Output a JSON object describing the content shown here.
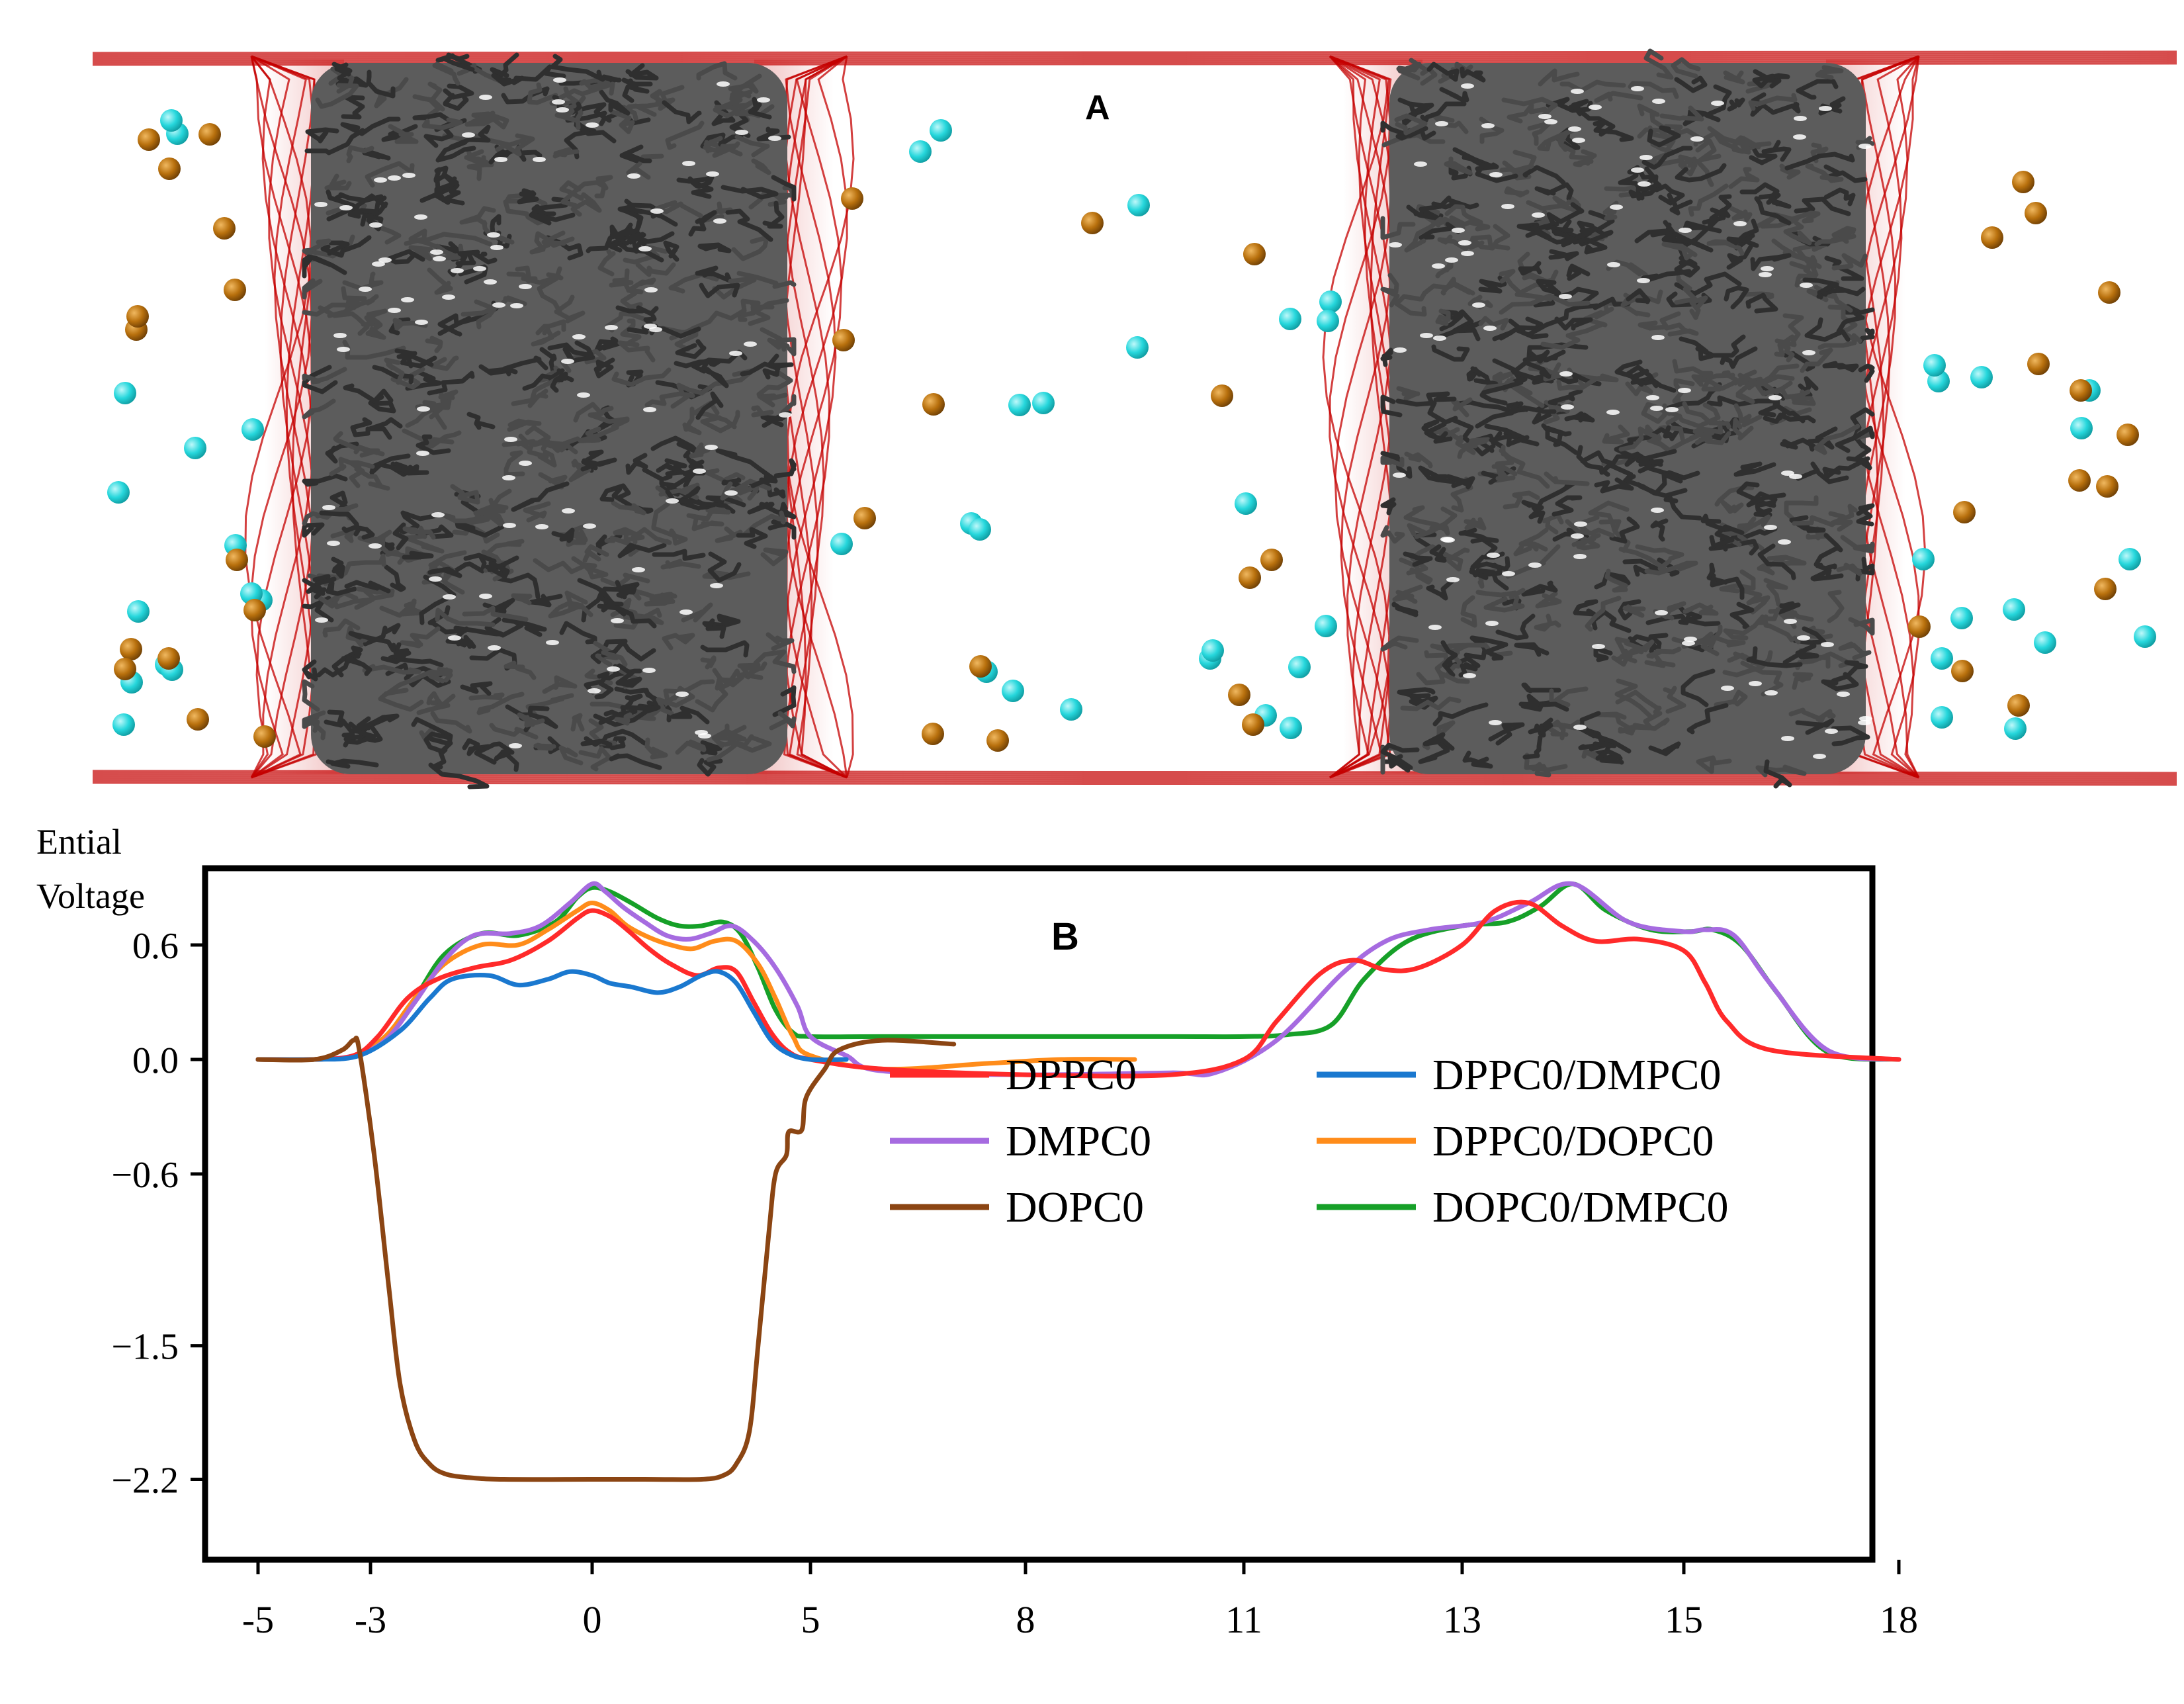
{
  "panel_a": {
    "label": "A",
    "colors": {
      "membrane_boundary": "#c40000",
      "lipid_tails": "#4a4a4a",
      "ion_cyan": "#26d7dc",
      "ion_orange": "#b8700d"
    }
  },
  "chart_data": {
    "type": "line",
    "panel_label": "B",
    "ylabel": "Ential Voltage",
    "xlabel": "",
    "xlim": [
      -5,
      18
    ],
    "ylim": [
      -2.5,
      0.95
    ],
    "x_tick_labels": [
      "-5",
      "-3",
      "0",
      "5",
      "8",
      "11",
      "13",
      "15",
      "18"
    ],
    "y_ticks": [
      {
        "value": 0.6,
        "label": "0.6"
      },
      {
        "value": 0.0,
        "label": "0.0"
      },
      {
        "value": -0.6,
        "label": "−0.6"
      },
      {
        "value": -1.5,
        "label": "−1.5"
      },
      {
        "value": -2.2,
        "label": "−2.2"
      }
    ],
    "grid": false,
    "legend_position": "center-right",
    "series": [
      {
        "name": "DPPC0",
        "color": "#ff2a2a",
        "x": [
          -5,
          -4,
          -3.3,
          -2.9,
          -2.5,
          -2.1,
          -1.6,
          -1.1,
          -0.6,
          -0.2,
          0,
          0.4,
          0.8,
          1.3,
          1.8,
          2.4,
          2.9,
          3.3,
          3.7,
          4.1,
          4.5,
          5,
          6,
          8,
          10,
          11,
          11.3,
          11.7,
          12,
          12.3,
          12.6,
          13,
          13.3,
          13.6,
          13.9,
          14.2,
          14.6,
          15,
          15.3,
          15.6,
          16.2,
          18
        ],
        "y": [
          0,
          0,
          0.02,
          0.12,
          0.32,
          0.42,
          0.48,
          0.52,
          0.62,
          0.74,
          0.78,
          0.75,
          0.68,
          0.58,
          0.5,
          0.44,
          0.48,
          0.46,
          0.3,
          0.14,
          0.04,
          0,
          -0.05,
          -0.08,
          -0.08,
          0,
          0.2,
          0.45,
          0.52,
          0.47,
          0.48,
          0.6,
          0.78,
          0.82,
          0.7,
          0.62,
          0.63,
          0.57,
          0.4,
          0.2,
          0.05,
          0
        ]
      },
      {
        "name": "DMPC0",
        "color": "#a66be0",
        "x": [
          -5,
          -4,
          -3.3,
          -2.8,
          -2.4,
          -2,
          -1.6,
          -1.1,
          -0.7,
          -0.3,
          0,
          0.3,
          0.7,
          1.2,
          1.7,
          2.2,
          2.7,
          3.2,
          3.7,
          4.2,
          4.7,
          5,
          5.5,
          6,
          8,
          10,
          10.6,
          11.3,
          11.9,
          12.3,
          12.7,
          13.2,
          13.6,
          14,
          14.5,
          15,
          15.3,
          15.7,
          16.2,
          17,
          18
        ],
        "y": [
          0,
          0,
          0.02,
          0.1,
          0.3,
          0.52,
          0.65,
          0.66,
          0.7,
          0.82,
          0.92,
          0.88,
          0.8,
          0.72,
          0.65,
          0.63,
          0.66,
          0.7,
          0.62,
          0.48,
          0.28,
          0.12,
          0.02,
          -0.06,
          -0.08,
          -0.07,
          -0.07,
          0.1,
          0.45,
          0.62,
          0.68,
          0.72,
          0.82,
          0.92,
          0.72,
          0.67,
          0.68,
          0.65,
          0.4,
          0.05,
          0
        ]
      },
      {
        "name": "DOPC0",
        "color": "#8b4513",
        "x": [
          -5,
          -4,
          -3.5,
          -3.3,
          -3.2,
          -2.95,
          -2.75,
          -2.6,
          -2.4,
          -2.2,
          -2.0,
          -1.7,
          -1.2,
          0,
          1.2,
          2.5,
          3.0,
          3.3,
          3.6,
          3.8,
          4.05,
          4.2,
          4.45,
          4.5,
          4.8,
          4.9,
          5.2,
          5.4,
          6,
          7
        ],
        "y": [
          0,
          0,
          0.05,
          0.1,
          0.05,
          -0.5,
          -1.2,
          -1.7,
          -2.0,
          -2.12,
          -2.17,
          -2.19,
          -2.2,
          -2.2,
          -2.2,
          -2.2,
          -2.18,
          -2.12,
          -1.95,
          -1.5,
          -0.9,
          -0.6,
          -0.5,
          -0.38,
          -0.37,
          -0.2,
          -0.05,
          0.05,
          0.1,
          0.08
        ]
      },
      {
        "name": "DPPC0/DMPC0",
        "color": "#1a78cf",
        "x": [
          -5,
          -4,
          -3.2,
          -2.6,
          -2.2,
          -1.9,
          -1.4,
          -1,
          -0.6,
          -0.3,
          0,
          0.4,
          0.9,
          1.5,
          2,
          2.5,
          2.9,
          3.3,
          3.7,
          4.1,
          4.5,
          5,
          5.5
        ],
        "y": [
          0,
          0,
          0.02,
          0.15,
          0.32,
          0.42,
          0.44,
          0.39,
          0.42,
          0.46,
          0.44,
          0.4,
          0.38,
          0.35,
          0.38,
          0.44,
          0.46,
          0.4,
          0.25,
          0.1,
          0.03,
          0,
          0
        ]
      },
      {
        "name": "DPPC0/DOPC0",
        "color": "#ff8c1a",
        "x": [
          -5,
          -4,
          -3.3,
          -2.8,
          -2.4,
          -2,
          -1.5,
          -1,
          -0.6,
          -0.2,
          0,
          0.4,
          0.8,
          1.3,
          1.8,
          2.3,
          2.8,
          3.3,
          3.8,
          4.2,
          4.6,
          5,
          6,
          7.5,
          8.5,
          9.5
        ],
        "y": [
          0,
          0,
          0.02,
          0.12,
          0.32,
          0.5,
          0.6,
          0.6,
          0.68,
          0.78,
          0.82,
          0.78,
          0.7,
          0.64,
          0.6,
          0.58,
          0.62,
          0.62,
          0.5,
          0.32,
          0.12,
          0.02,
          -0.05,
          -0.02,
          0,
          0
        ]
      },
      {
        "name": "DOPC0/DMPC0",
        "color": "#16a028",
        "x": [
          -5,
          -4,
          -3.3,
          -2.8,
          -2.4,
          -2,
          -1.5,
          -1,
          -0.5,
          -0.2,
          0,
          0.4,
          0.9,
          1.5,
          2,
          2.5,
          3,
          3.4,
          3.8,
          4.2,
          4.6,
          5,
          6,
          8,
          10,
          11,
          11.4,
          11.8,
          12.1,
          12.5,
          13,
          13.4,
          13.7,
          14,
          14.3,
          14.7,
          15.1,
          15.4,
          15.8,
          16.3,
          17,
          18
        ],
        "y": [
          0,
          0,
          0.02,
          0.12,
          0.32,
          0.55,
          0.66,
          0.65,
          0.72,
          0.85,
          0.9,
          0.88,
          0.82,
          0.74,
          0.7,
          0.7,
          0.72,
          0.66,
          0.48,
          0.26,
          0.14,
          0.12,
          0.12,
          0.12,
          0.12,
          0.12,
          0.13,
          0.18,
          0.42,
          0.62,
          0.7,
          0.72,
          0.8,
          0.92,
          0.78,
          0.68,
          0.67,
          0.68,
          0.6,
          0.35,
          0.04,
          0
        ]
      }
    ]
  }
}
